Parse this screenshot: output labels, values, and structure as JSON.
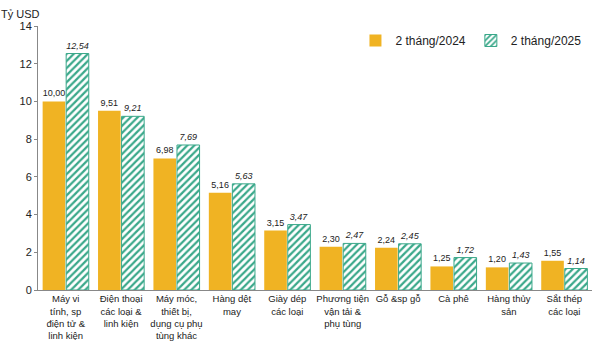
{
  "chart_data": {
    "type": "bar",
    "y_label": "Tỷ USD",
    "categories": [
      "Máy vi tính, sp điện tử & linh kiện",
      "Điện thoại các loại & linh kiện",
      "Máy móc, thiết bị, dụng cụ phụ tùng khác",
      "Hàng dệt may",
      "Giày dép các loại",
      "Phương tiện vận tải & phụ tùng",
      "Gỗ &sp gỗ",
      "Cà phê",
      "Hàng thủy sản",
      "Sắt thép các loại"
    ],
    "series": [
      {
        "name": "2 tháng/2024",
        "color": "#F0B323",
        "values": [
          10.0,
          9.51,
          6.98,
          5.16,
          3.15,
          2.3,
          2.24,
          1.25,
          1.2,
          1.55
        ],
        "value_labels": [
          "10,00",
          "9,51",
          "6,98",
          "5,16",
          "3,15",
          "2,30",
          "2,24",
          "1,25",
          "1,20",
          "1,55"
        ]
      },
      {
        "name": "2 tháng/2025",
        "color": "#3AA88A",
        "marker": "hatched",
        "values": [
          12.54,
          9.21,
          7.69,
          5.63,
          3.47,
          2.47,
          2.45,
          1.72,
          1.43,
          1.14
        ],
        "value_labels": [
          "12,54",
          "9,21",
          "7,69",
          "5,63",
          "3,47",
          "2,47",
          "2,45",
          "1,72",
          "1,43",
          "1,14"
        ]
      }
    ],
    "ylim": [
      0,
      14
    ],
    "yticks": [
      0,
      2,
      4,
      6,
      8,
      10,
      12,
      14
    ],
    "grid": false,
    "legend": "top-right",
    "data_labels": true
  }
}
